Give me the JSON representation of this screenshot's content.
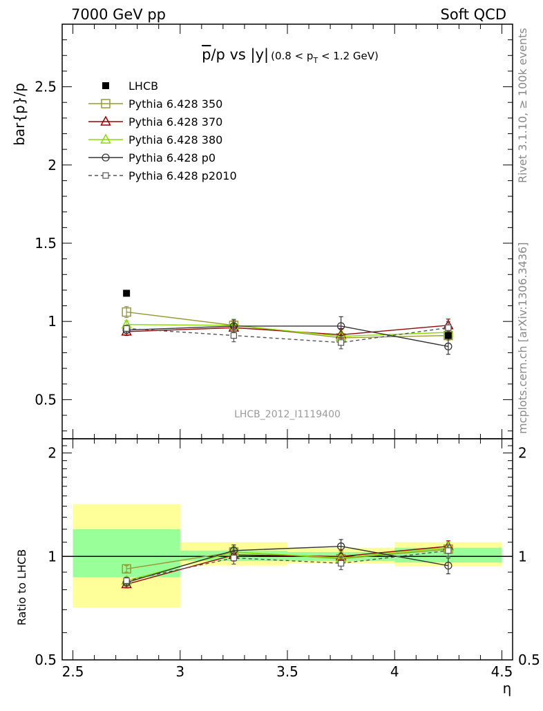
{
  "header": {
    "left": "7000 GeV pp",
    "right": "Soft QCD"
  },
  "side_labels": {
    "rivet": "Rivet 3.1.10, ≥ 100k events",
    "source": "mcplots.cern.ch [arXiv:1306.3436]"
  },
  "analysis_tag": "LHCB_2012_I1119400",
  "chart_data": [
    {
      "type": "line",
      "title": "p̅/p vs |y|",
      "title_parts": {
        "main_a": "p",
        "main_b": "/p vs |y|",
        "cut_a": "(0.8 < p",
        "cut_sub": "T",
        "cut_b": " < 1.2 GeV)"
      },
      "ylabel": "bar{p}/p",
      "xlim": [
        2.45,
        4.55
      ],
      "ylim": [
        0.25,
        2.9
      ],
      "y_ticks": [
        0.5,
        1,
        1.5,
        2,
        2.5
      ],
      "y_tick_labels": [
        "0.5",
        "1",
        "1.5",
        "2",
        "2.5"
      ],
      "x": [
        2.75,
        3.25,
        3.75,
        4.25
      ],
      "legend_position": "top-left",
      "data": {
        "name": "LHCB",
        "x": [
          2.75,
          4.25
        ],
        "y": [
          1.18,
          0.91
        ],
        "color": "#000000"
      },
      "series": [
        {
          "name": "Pythia 6.428 350",
          "y": [
            1.06,
            0.975,
            0.895,
            0.91
          ],
          "err": [
            0.035,
            0.035,
            0.035,
            0.03
          ],
          "color": "#999933",
          "marker": "square-open",
          "dash": ""
        },
        {
          "name": "Pythia 6.428 370",
          "y": [
            0.935,
            0.96,
            0.915,
            0.975
          ],
          "err": [
            0.025,
            0.04,
            0.04,
            0.04
          ],
          "color": "#990000",
          "marker": "triangle-open",
          "dash": ""
        },
        {
          "name": "Pythia 6.428 380",
          "y": [
            0.98,
            0.975,
            0.905,
            0.93
          ],
          "err": [
            0.025,
            0.04,
            0.04,
            0.035
          ],
          "color": "#88dd00",
          "marker": "triangle-open",
          "dash": ""
        },
        {
          "name": "Pythia 6.428 p0",
          "y": [
            0.945,
            0.97,
            0.97,
            0.84
          ],
          "err": [
            0.02,
            0.04,
            0.06,
            0.05
          ],
          "color": "#333333",
          "marker": "circle-open",
          "dash": ""
        },
        {
          "name": "Pythia 6.428 p2010",
          "y": [
            0.955,
            0.91,
            0.865,
            0.96
          ],
          "err": [
            0.02,
            0.04,
            0.04,
            0.04
          ],
          "color": "#555555",
          "marker": "square-small",
          "dash": "5,4"
        }
      ]
    },
    {
      "type": "line",
      "title": "",
      "ylabel": "Ratio to LHCB",
      "xlabel": "η",
      "xlim": [
        2.45,
        4.55
      ],
      "ylim": [
        0.5,
        2.2
      ],
      "log_y": true,
      "y_ticks": [
        0.5,
        1,
        2
      ],
      "y_tick_labels": [
        "0.5",
        "1",
        "2"
      ],
      "x_ticks": [
        2.5,
        3,
        3.5,
        4,
        4.5
      ],
      "x_tick_labels": [
        "2.5",
        "3",
        "3.5",
        "4",
        "4.5"
      ],
      "reference_line": 1,
      "bands": [
        {
          "x0": 2.5,
          "x1": 3.0,
          "inner": [
            0.87,
            1.2
          ],
          "outer": [
            0.71,
            1.42
          ]
        },
        {
          "x0": 3.0,
          "x1": 3.5,
          "inner": [
            0.97,
            1.04
          ],
          "outer": [
            0.94,
            1.1
          ]
        },
        {
          "x0": 3.5,
          "x1": 4.0,
          "inner": [
            0.97,
            1.03
          ],
          "outer": [
            0.955,
            1.06
          ]
        },
        {
          "x0": 4.0,
          "x1": 4.5,
          "inner": [
            0.96,
            1.06
          ],
          "outer": [
            0.935,
            1.1
          ]
        }
      ],
      "band_colors": {
        "inner": "#99ff99",
        "outer": "#ffff99"
      },
      "x": [
        2.75,
        3.25,
        3.75,
        4.25
      ],
      "series": [
        {
          "name": "Pythia 6.428 350",
          "y": [
            0.92,
            1.03,
            0.985,
            1.05
          ],
          "err": [
            0.02,
            0.03,
            0.03,
            0.03
          ],
          "color": "#999933",
          "marker": "square-open",
          "dash": ""
        },
        {
          "name": "Pythia 6.428 370",
          "y": [
            0.83,
            1.01,
            1.0,
            1.07
          ],
          "err": [
            0.02,
            0.04,
            0.04,
            0.04
          ],
          "color": "#990000",
          "marker": "triangle-open",
          "dash": ""
        },
        {
          "name": "Pythia 6.428 380",
          "y": [
            0.85,
            1.03,
            0.99,
            1.06
          ],
          "err": [
            0.02,
            0.04,
            0.04,
            0.04
          ],
          "color": "#88dd00",
          "marker": "triangle-open",
          "dash": ""
        },
        {
          "name": "Pythia 6.428 p0",
          "y": [
            0.84,
            1.04,
            1.07,
            0.94
          ],
          "err": [
            0.02,
            0.04,
            0.05,
            0.05
          ],
          "color": "#333333",
          "marker": "circle-open",
          "dash": ""
        },
        {
          "name": "Pythia 6.428 p2010",
          "y": [
            0.85,
            0.99,
            0.955,
            1.04
          ],
          "err": [
            0.02,
            0.04,
            0.04,
            0.04
          ],
          "color": "#555555",
          "marker": "square-small",
          "dash": "5,4"
        }
      ]
    }
  ]
}
